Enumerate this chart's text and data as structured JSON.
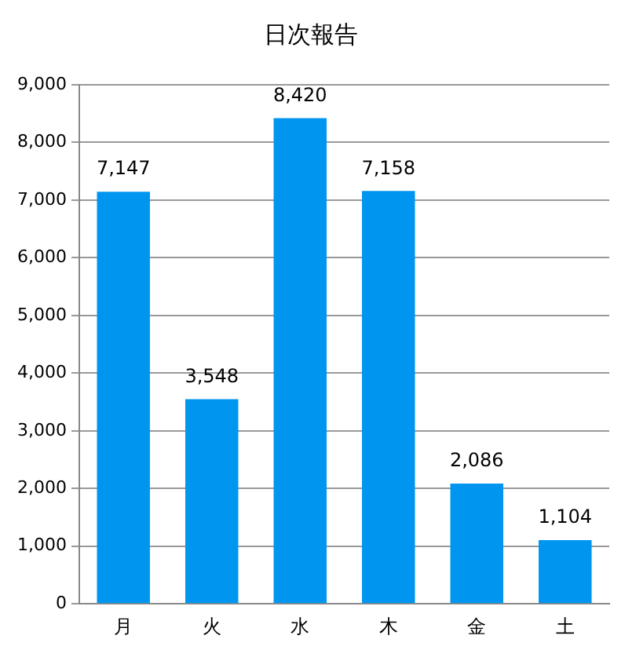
{
  "chart_data": {
    "type": "bar",
    "title": "日次報告",
    "categories": [
      "月",
      "火",
      "水",
      "木",
      "金",
      "土"
    ],
    "values": [
      7147,
      3548,
      8420,
      7158,
      2086,
      1104
    ],
    "value_labels": [
      "7,147",
      "3,548",
      "8,420",
      "7,158",
      "2,086",
      "1,104"
    ],
    "color": "#0096f0",
    "ylim": [
      0,
      9000
    ],
    "yticks": [
      {
        "value": 0,
        "label": "0"
      },
      {
        "value": 1000,
        "label": "1,000"
      },
      {
        "value": 2000,
        "label": "2,000"
      },
      {
        "value": 3000,
        "label": "3,000"
      },
      {
        "value": 4000,
        "label": "4,000"
      },
      {
        "value": 5000,
        "label": "5,000"
      },
      {
        "value": 6000,
        "label": "6,000"
      },
      {
        "value": 7000,
        "label": "7,000"
      },
      {
        "value": 8000,
        "label": "8,000"
      },
      {
        "value": 9000,
        "label": "9,000"
      }
    ],
    "grid": "y"
  }
}
